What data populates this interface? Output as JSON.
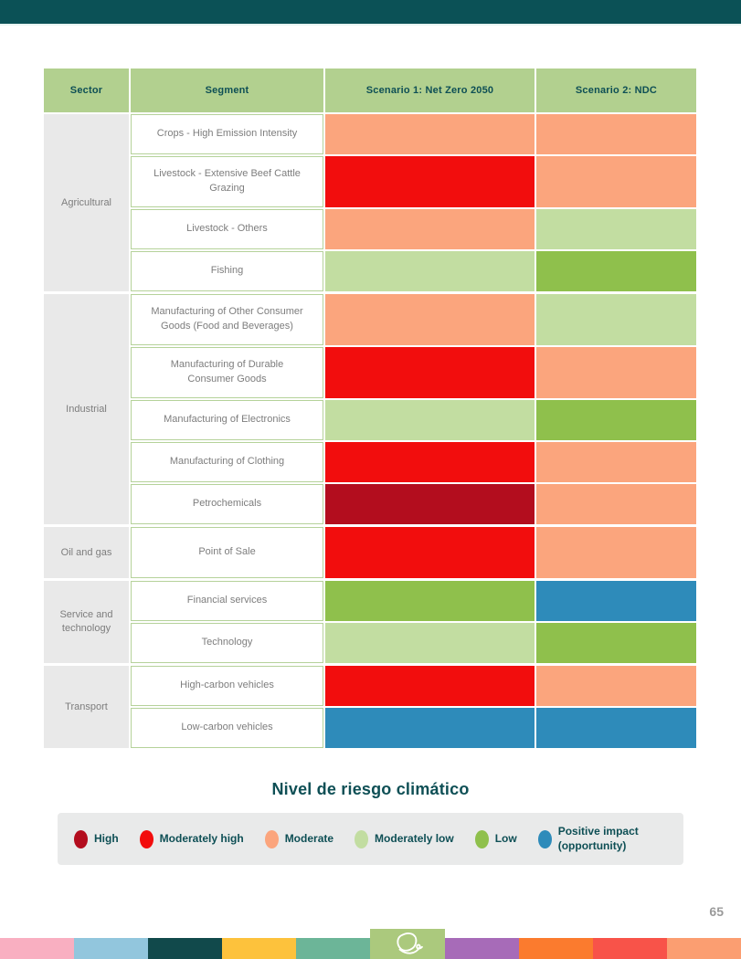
{
  "page": {
    "number": "65"
  },
  "table": {
    "headers": {
      "sector": "Sector",
      "segment": "Segment",
      "scenario1": "Scenario 1: Net Zero 2050",
      "scenario2": "Scenario 2: NDC"
    },
    "groups": [
      {
        "sector": "Agricultural",
        "rows": [
          {
            "segment": "Crops - High Emission Intensity",
            "s1": "moderate",
            "s2": "moderate",
            "tall": false
          },
          {
            "segment": "Livestock - Extensive Beef Cattle Grazing",
            "s1": "moderately_high",
            "s2": "moderate",
            "tall": true
          },
          {
            "segment": "Livestock - Others",
            "s1": "moderate",
            "s2": "moderately_low",
            "tall": false
          },
          {
            "segment": "Fishing",
            "s1": "moderately_low",
            "s2": "low",
            "tall": false
          }
        ]
      },
      {
        "sector": "Industrial",
        "rows": [
          {
            "segment": "Manufacturing of Other Consumer Goods (Food and Beverages)",
            "s1": "moderate",
            "s2": "moderately_low",
            "tall": true
          },
          {
            "segment": "Manufacturing of Durable Consumer Goods",
            "s1": "moderately_high",
            "s2": "moderate",
            "tall": true
          },
          {
            "segment": "Manufacturing of Electronics",
            "s1": "moderately_low",
            "s2": "low",
            "tall": false
          },
          {
            "segment": "Manufacturing of Clothing",
            "s1": "moderately_high",
            "s2": "moderate",
            "tall": false
          },
          {
            "segment": "Petrochemicals",
            "s1": "high",
            "s2": "moderate",
            "tall": false
          }
        ]
      },
      {
        "sector": "Oil and gas",
        "rows": [
          {
            "segment": "Point of Sale",
            "s1": "moderately_high",
            "s2": "moderate",
            "tall": true
          }
        ]
      },
      {
        "sector": "Service and technology",
        "rows": [
          {
            "segment": "Financial services",
            "s1": "low",
            "s2": "positive_impact",
            "tall": false
          },
          {
            "segment": "Technology",
            "s1": "moderately_low",
            "s2": "low",
            "tall": false
          }
        ]
      },
      {
        "sector": "Transport",
        "rows": [
          {
            "segment": "High-carbon vehicles",
            "s1": "moderately_high",
            "s2": "moderate",
            "tall": false
          },
          {
            "segment": "Low-carbon vehicles",
            "s1": "positive_impact",
            "s2": "positive_impact",
            "tall": false
          }
        ]
      }
    ]
  },
  "legend": {
    "title": "Nivel de riesgo climático",
    "items": [
      {
        "level": "high",
        "label": "High"
      },
      {
        "level": "moderately_high",
        "label": "Moderately high"
      },
      {
        "level": "moderate",
        "label": "Moderate"
      },
      {
        "level": "moderately_low",
        "label": "Moderately low"
      },
      {
        "level": "low",
        "label": "Low"
      },
      {
        "level": "positive_impact",
        "label": "Positive impact (opportunity)"
      }
    ]
  },
  "footer": {
    "stripe_colors": [
      "#f9afc1",
      "#92c6dd",
      "#11494b",
      "#fdc23c",
      "#6cb598",
      "#abc97d",
      "#a76bb8",
      "#fb7b2e",
      "#f85349",
      "#fb9e71"
    ],
    "logo_block_index": 5,
    "logo": "leaf-logo"
  },
  "colors": {
    "high": "#b30d1e",
    "moderately_high": "#f20d0d",
    "moderate": "#fba57d",
    "moderately_low": "#c2dda1",
    "low": "#8fc04c",
    "positive_impact": "#2e8bba",
    "header_bg": "#b2d08f",
    "teal": "#0e4f55",
    "sector_bg": "#e9e9e9",
    "cell_border": "#b5d29a",
    "text_gray": "#7d7d7d",
    "legend_bg": "#e9eaea",
    "topbar": "#0b5156",
    "page_number": "#9a9a9a"
  }
}
